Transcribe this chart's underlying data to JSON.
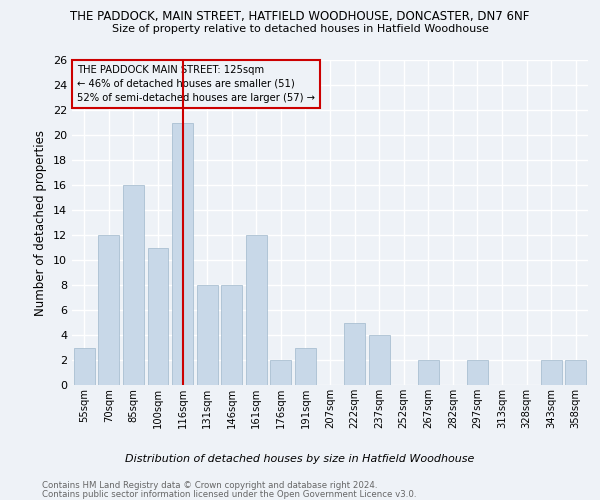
{
  "title": "THE PADDOCK, MAIN STREET, HATFIELD WOODHOUSE, DONCASTER, DN7 6NF",
  "subtitle": "Size of property relative to detached houses in Hatfield Woodhouse",
  "xlabel": "Distribution of detached houses by size in Hatfield Woodhouse",
  "ylabel": "Number of detached properties",
  "categories": [
    "55sqm",
    "70sqm",
    "85sqm",
    "100sqm",
    "116sqm",
    "131sqm",
    "146sqm",
    "161sqm",
    "176sqm",
    "191sqm",
    "207sqm",
    "222sqm",
    "237sqm",
    "252sqm",
    "267sqm",
    "282sqm",
    "297sqm",
    "313sqm",
    "328sqm",
    "343sqm",
    "358sqm"
  ],
  "values": [
    3,
    12,
    16,
    11,
    21,
    8,
    8,
    12,
    2,
    3,
    0,
    5,
    4,
    0,
    2,
    0,
    2,
    0,
    0,
    2,
    2
  ],
  "bar_color": "#c8d8e8",
  "bar_edgecolor": "#a0b8cc",
  "vline_x": 4,
  "vline_color": "#cc0000",
  "ylim": [
    0,
    26
  ],
  "yticks": [
    0,
    2,
    4,
    6,
    8,
    10,
    12,
    14,
    16,
    18,
    20,
    22,
    24,
    26
  ],
  "annotation_title": "THE PADDOCK MAIN STREET: 125sqm",
  "annotation_line1": "← 46% of detached houses are smaller (51)",
  "annotation_line2": "52% of semi-detached houses are larger (57) →",
  "annotation_box_edgecolor": "#cc0000",
  "footer_line1": "Contains HM Land Registry data © Crown copyright and database right 2024.",
  "footer_line2": "Contains public sector information licensed under the Open Government Licence v3.0.",
  "background_color": "#eef2f7",
  "grid_color": "#ffffff"
}
